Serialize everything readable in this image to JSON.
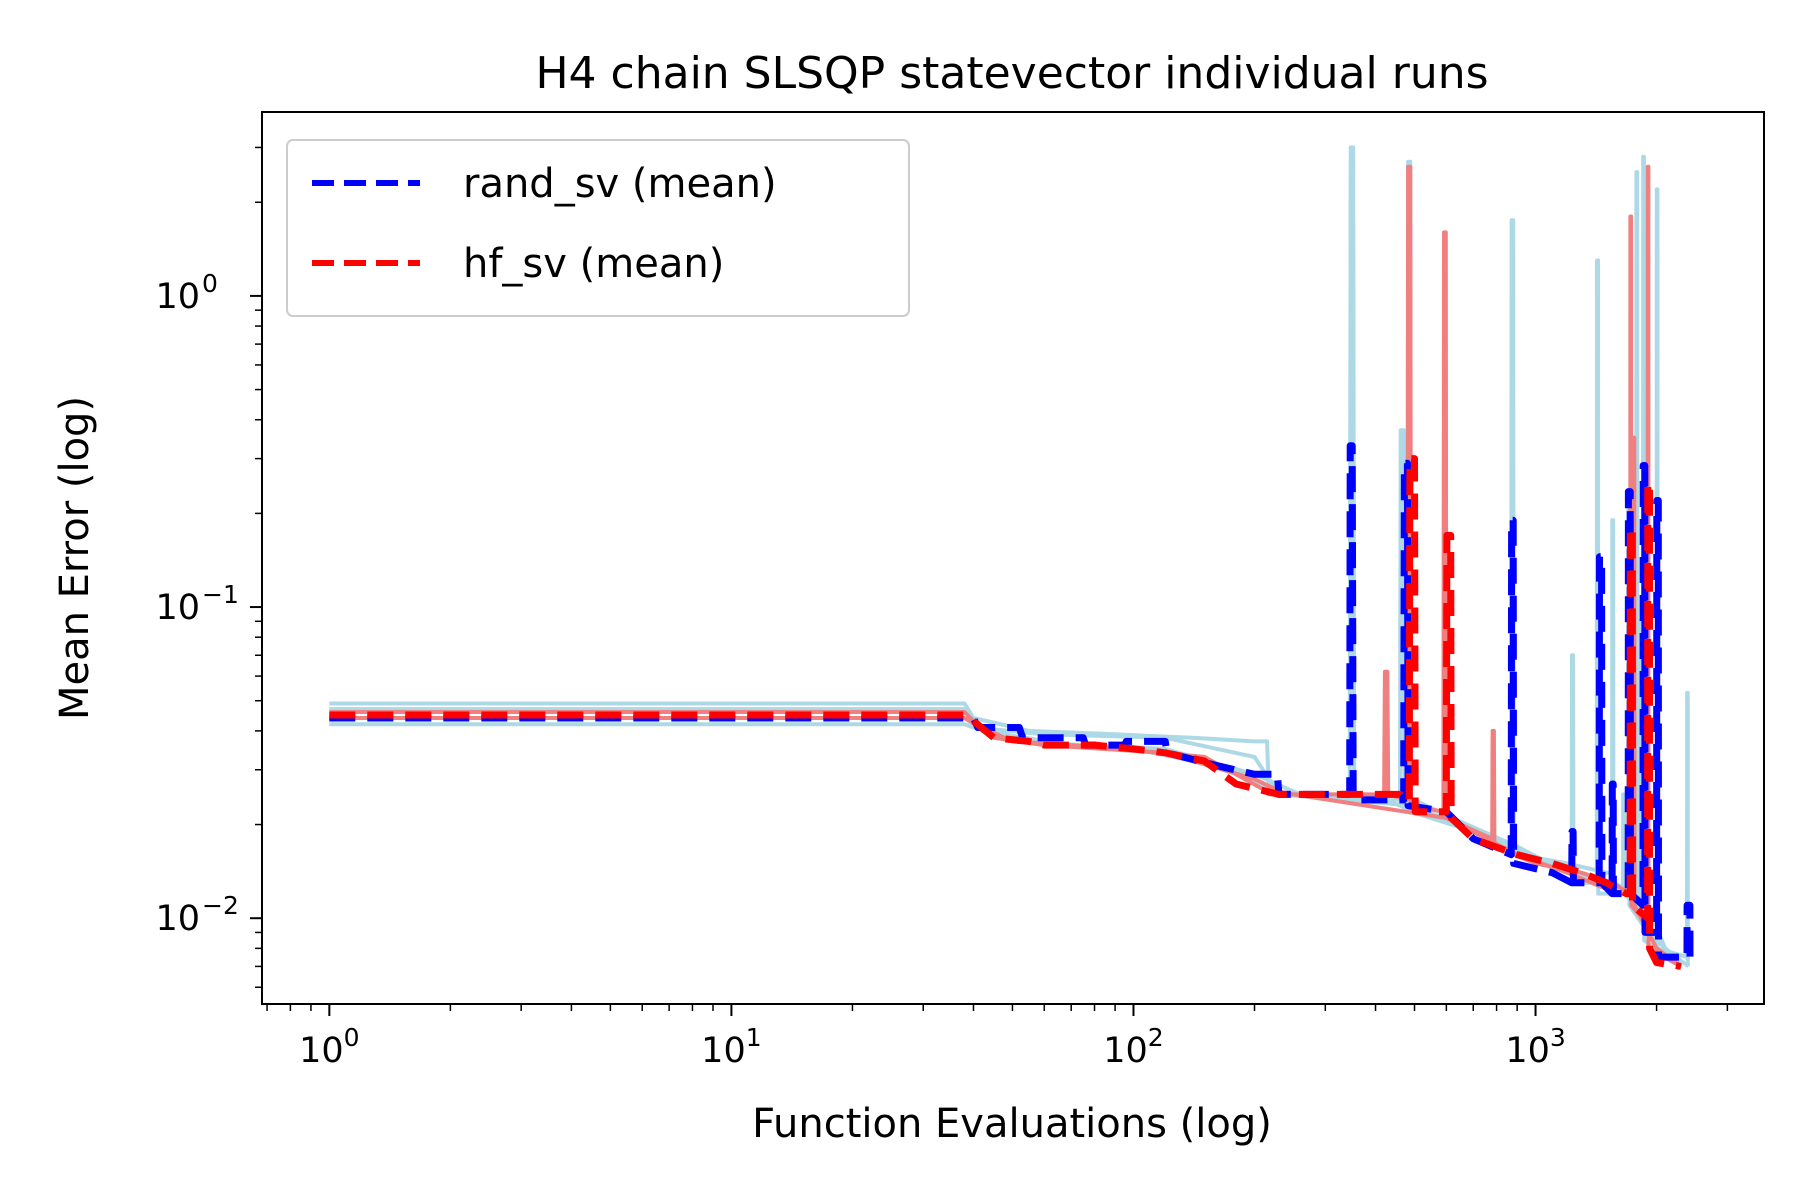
{
  "chart_data": {
    "type": "line",
    "title": "H4 chain SLSQP statevector individual runs",
    "xlabel": "Function Evaluations (log)",
    "ylabel": "Mean Error (log)",
    "xscale": "log",
    "yscale": "log",
    "xlim": [
      0.68,
      3700
    ],
    "ylim": [
      0.0053,
      3.9
    ],
    "x_ticks": [
      {
        "value": 1,
        "base": "10",
        "exp": "0"
      },
      {
        "value": 10,
        "base": "10",
        "exp": "1"
      },
      {
        "value": 100,
        "base": "10",
        "exp": "2"
      },
      {
        "value": 1000,
        "base": "10",
        "exp": "3"
      }
    ],
    "y_ticks": [
      {
        "value": 1,
        "base": "10",
        "exp": "0"
      },
      {
        "value": 0.1,
        "base": "10",
        "exp": "−1"
      },
      {
        "value": 0.01,
        "base": "10",
        "exp": "−2"
      }
    ],
    "grid": false,
    "legend": {
      "placement": "top-left",
      "entries": [
        {
          "label": "rand_sv (mean)",
          "color": "#0000ff",
          "style": "dashed"
        },
        {
          "label": "hf_sv (mean)",
          "color": "#ff0000",
          "style": "dashed"
        }
      ]
    },
    "colors": {
      "rand_runs": "#add8e6",
      "hf_runs": "#f08080",
      "rand_mean": "#0000ff",
      "hf_mean": "#ff0000"
    },
    "series": [
      {
        "name": "rand_sv (mean)",
        "color": "#0000ff",
        "style": "dashed",
        "points": [
          [
            1,
            0.044
          ],
          [
            25,
            0.044
          ],
          [
            40,
            0.044
          ],
          [
            41,
            0.041
          ],
          [
            52,
            0.041
          ],
          [
            53,
            0.038
          ],
          [
            75,
            0.038
          ],
          [
            76,
            0.036
          ],
          [
            95,
            0.036
          ],
          [
            96,
            0.037
          ],
          [
            120,
            0.037
          ],
          [
            121,
            0.034
          ],
          [
            160,
            0.031
          ],
          [
            200,
            0.029
          ],
          [
            228,
            0.029
          ],
          [
            230,
            0.025
          ],
          [
            340,
            0.025
          ],
          [
            345,
            0.025
          ],
          [
            346,
            0.33
          ],
          [
            350,
            0.33
          ],
          [
            352,
            0.024
          ],
          [
            470,
            0.024
          ],
          [
            472,
            0.29
          ],
          [
            480,
            0.29
          ],
          [
            482,
            0.023
          ],
          [
            600,
            0.022
          ],
          [
            700,
            0.018
          ],
          [
            870,
            0.016
          ],
          [
            872,
            0.19
          ],
          [
            880,
            0.19
          ],
          [
            882,
            0.015
          ],
          [
            1100,
            0.014
          ],
          [
            1230,
            0.013
          ],
          [
            1232,
            0.019
          ],
          [
            1240,
            0.019
          ],
          [
            1242,
            0.013
          ],
          [
            1440,
            0.013
          ],
          [
            1442,
            0.145
          ],
          [
            1460,
            0.145
          ],
          [
            1462,
            0.013
          ],
          [
            1550,
            0.012
          ],
          [
            1552,
            0.027
          ],
          [
            1560,
            0.027
          ],
          [
            1562,
            0.012
          ],
          [
            1700,
            0.012
          ],
          [
            1702,
            0.235
          ],
          [
            1720,
            0.235
          ],
          [
            1722,
            0.012
          ],
          [
            1850,
            0.011
          ],
          [
            1852,
            0.285
          ],
          [
            1870,
            0.285
          ],
          [
            1872,
            0.009
          ],
          [
            2000,
            0.009
          ],
          [
            2002,
            0.22
          ],
          [
            2020,
            0.22
          ],
          [
            2022,
            0.0075
          ],
          [
            2380,
            0.0075
          ],
          [
            2382,
            0.011
          ],
          [
            2420,
            0.011
          ],
          [
            2422,
            0.0072
          ]
        ]
      },
      {
        "name": "hf_sv (mean)",
        "color": "#ff0000",
        "style": "dashed",
        "points": [
          [
            1,
            0.045
          ],
          [
            25,
            0.045
          ],
          [
            38,
            0.045
          ],
          [
            40,
            0.043
          ],
          [
            45,
            0.038
          ],
          [
            55,
            0.037
          ],
          [
            60,
            0.036
          ],
          [
            80,
            0.036
          ],
          [
            100,
            0.035
          ],
          [
            120,
            0.034
          ],
          [
            150,
            0.032
          ],
          [
            180,
            0.027
          ],
          [
            230,
            0.025
          ],
          [
            400,
            0.025
          ],
          [
            460,
            0.025
          ],
          [
            470,
            0.024
          ],
          [
            485,
            0.024
          ],
          [
            487,
            0.3
          ],
          [
            500,
            0.3
          ],
          [
            502,
            0.022
          ],
          [
            600,
            0.022
          ],
          [
            602,
            0.17
          ],
          [
            615,
            0.17
          ],
          [
            617,
            0.021
          ],
          [
            700,
            0.018
          ],
          [
            900,
            0.016
          ],
          [
            1100,
            0.015
          ],
          [
            1300,
            0.014
          ],
          [
            1500,
            0.013
          ],
          [
            1680,
            0.012
          ],
          [
            1720,
            0.012
          ],
          [
            1722,
            0.18
          ],
          [
            1740,
            0.18
          ],
          [
            1742,
            0.011
          ],
          [
            1900,
            0.01
          ],
          [
            1902,
            0.25
          ],
          [
            1920,
            0.25
          ],
          [
            1922,
            0.008
          ],
          [
            2000,
            0.0072
          ],
          [
            2300,
            0.007
          ]
        ]
      }
    ],
    "runs": [
      {
        "group": "rand",
        "color": "#add8e6",
        "points": [
          [
            1,
            0.049
          ],
          [
            25,
            0.049
          ],
          [
            38,
            0.049
          ],
          [
            40,
            0.044
          ],
          [
            55,
            0.04
          ],
          [
            90,
            0.039
          ],
          [
            140,
            0.038
          ],
          [
            200,
            0.037
          ],
          [
            215,
            0.037
          ],
          [
            217,
            0.025
          ],
          [
            345,
            0.025
          ],
          [
            347,
            3.0
          ],
          [
            352,
            3.0
          ],
          [
            354,
            0.025
          ],
          [
            420,
            0.024
          ],
          [
            422,
            0.029
          ],
          [
            425,
            0.024
          ],
          [
            500,
            0.022
          ],
          [
            700,
            0.019
          ],
          [
            900,
            0.016
          ],
          [
            1200,
            0.015
          ],
          [
            1500,
            0.014
          ],
          [
            1550,
            0.014
          ],
          [
            1552,
            0.19
          ],
          [
            1560,
            0.19
          ],
          [
            1562,
            0.013
          ],
          [
            1780,
            0.012
          ],
          [
            1782,
            2.5
          ],
          [
            1790,
            2.5
          ],
          [
            1792,
            0.011
          ],
          [
            2000,
            0.01
          ],
          [
            2002,
            2.2
          ],
          [
            2010,
            2.2
          ],
          [
            2012,
            0.008
          ],
          [
            2380,
            0.0075
          ],
          [
            2382,
            0.053
          ],
          [
            2390,
            0.053
          ],
          [
            2392,
            0.007
          ]
        ]
      },
      {
        "group": "rand",
        "color": "#add8e6",
        "points": [
          [
            1,
            0.042
          ],
          [
            25,
            0.042
          ],
          [
            38,
            0.042
          ],
          [
            40,
            0.041
          ],
          [
            60,
            0.039
          ],
          [
            120,
            0.038
          ],
          [
            200,
            0.033
          ],
          [
            230,
            0.025
          ],
          [
            460,
            0.024
          ],
          [
            462,
            0.37
          ],
          [
            470,
            0.37
          ],
          [
            472,
            0.023
          ],
          [
            480,
            0.023
          ],
          [
            482,
            2.7
          ],
          [
            488,
            2.7
          ],
          [
            490,
            0.022
          ],
          [
            700,
            0.019
          ],
          [
            870,
            0.017
          ],
          [
            872,
            1.75
          ],
          [
            880,
            1.75
          ],
          [
            882,
            0.016
          ],
          [
            1100,
            0.015
          ],
          [
            1230,
            0.014
          ],
          [
            1232,
            0.07
          ],
          [
            1240,
            0.07
          ],
          [
            1242,
            0.013
          ],
          [
            1420,
            0.013
          ],
          [
            1422,
            1.3
          ],
          [
            1430,
            1.3
          ],
          [
            1432,
            0.012
          ],
          [
            1700,
            0.012
          ],
          [
            1702,
            0.22
          ],
          [
            1710,
            0.22
          ],
          [
            1712,
            0.011
          ],
          [
            1850,
            0.0095
          ],
          [
            1852,
            2.8
          ],
          [
            1860,
            2.8
          ],
          [
            1862,
            0.0085
          ],
          [
            2300,
            0.007
          ]
        ]
      },
      {
        "group": "rand",
        "color": "#add8e6",
        "points": [
          [
            1,
            0.047
          ],
          [
            25,
            0.047
          ],
          [
            38,
            0.047
          ],
          [
            42,
            0.04
          ],
          [
            70,
            0.036
          ],
          [
            120,
            0.035
          ],
          [
            200,
            0.029
          ],
          [
            260,
            0.025
          ],
          [
            500,
            0.024
          ],
          [
            620,
            0.021
          ],
          [
            900,
            0.017
          ],
          [
            1200,
            0.014
          ],
          [
            1500,
            0.013
          ],
          [
            1650,
            0.012
          ],
          [
            1652,
            0.025
          ],
          [
            1660,
            0.025
          ],
          [
            1662,
            0.012
          ],
          [
            1800,
            0.011
          ],
          [
            1802,
            0.09
          ],
          [
            1810,
            0.09
          ],
          [
            1812,
            0.01
          ],
          [
            2000,
            0.0085
          ],
          [
            2300,
            0.0072
          ]
        ]
      },
      {
        "group": "rand",
        "color": "#add8e6",
        "points": [
          [
            1,
            0.044
          ],
          [
            25,
            0.044
          ],
          [
            38,
            0.044
          ],
          [
            40,
            0.042
          ],
          [
            55,
            0.037
          ],
          [
            100,
            0.035
          ],
          [
            180,
            0.03
          ],
          [
            230,
            0.025
          ],
          [
            500,
            0.023
          ],
          [
            700,
            0.019
          ],
          [
            950,
            0.016
          ],
          [
            1200,
            0.014
          ],
          [
            1500,
            0.013
          ],
          [
            1900,
            0.011
          ],
          [
            2100,
            0.008
          ],
          [
            2400,
            0.007
          ]
        ]
      },
      {
        "group": "hf",
        "color": "#f08080",
        "points": [
          [
            1,
            0.046
          ],
          [
            25,
            0.046
          ],
          [
            38,
            0.046
          ],
          [
            40,
            0.043
          ],
          [
            45,
            0.038
          ],
          [
            60,
            0.036
          ],
          [
            120,
            0.034
          ],
          [
            200,
            0.028
          ],
          [
            240,
            0.025
          ],
          [
            420,
            0.025
          ],
          [
            422,
            0.062
          ],
          [
            428,
            0.062
          ],
          [
            430,
            0.025
          ],
          [
            480,
            0.024
          ],
          [
            482,
            2.6
          ],
          [
            488,
            2.6
          ],
          [
            490,
            0.023
          ],
          [
            590,
            0.022
          ],
          [
            592,
            1.6
          ],
          [
            598,
            1.6
          ],
          [
            600,
            0.021
          ],
          [
            780,
            0.018
          ],
          [
            782,
            0.04
          ],
          [
            788,
            0.04
          ],
          [
            790,
            0.017
          ],
          [
            1000,
            0.015
          ],
          [
            1300,
            0.014
          ],
          [
            1550,
            0.013
          ],
          [
            1720,
            0.012
          ],
          [
            1722,
            1.8
          ],
          [
            1728,
            1.8
          ],
          [
            1730,
            0.011
          ],
          [
            1900,
            0.0095
          ],
          [
            1902,
            2.6
          ],
          [
            1908,
            2.6
          ],
          [
            1910,
            0.008
          ],
          [
            2300,
            0.007
          ]
        ]
      },
      {
        "group": "hf",
        "color": "#f08080",
        "points": [
          [
            1,
            0.044
          ],
          [
            25,
            0.044
          ],
          [
            38,
            0.044
          ],
          [
            42,
            0.041
          ],
          [
            50,
            0.037
          ],
          [
            70,
            0.036
          ],
          [
            150,
            0.033
          ],
          [
            210,
            0.026
          ],
          [
            250,
            0.025
          ],
          [
            600,
            0.021
          ],
          [
            900,
            0.016
          ],
          [
            1200,
            0.014
          ],
          [
            1600,
            0.012
          ],
          [
            1750,
            0.012
          ],
          [
            1752,
            0.35
          ],
          [
            1760,
            0.35
          ],
          [
            1762,
            0.011
          ],
          [
            2000,
            0.008
          ],
          [
            2300,
            0.007
          ]
        ]
      }
    ]
  }
}
